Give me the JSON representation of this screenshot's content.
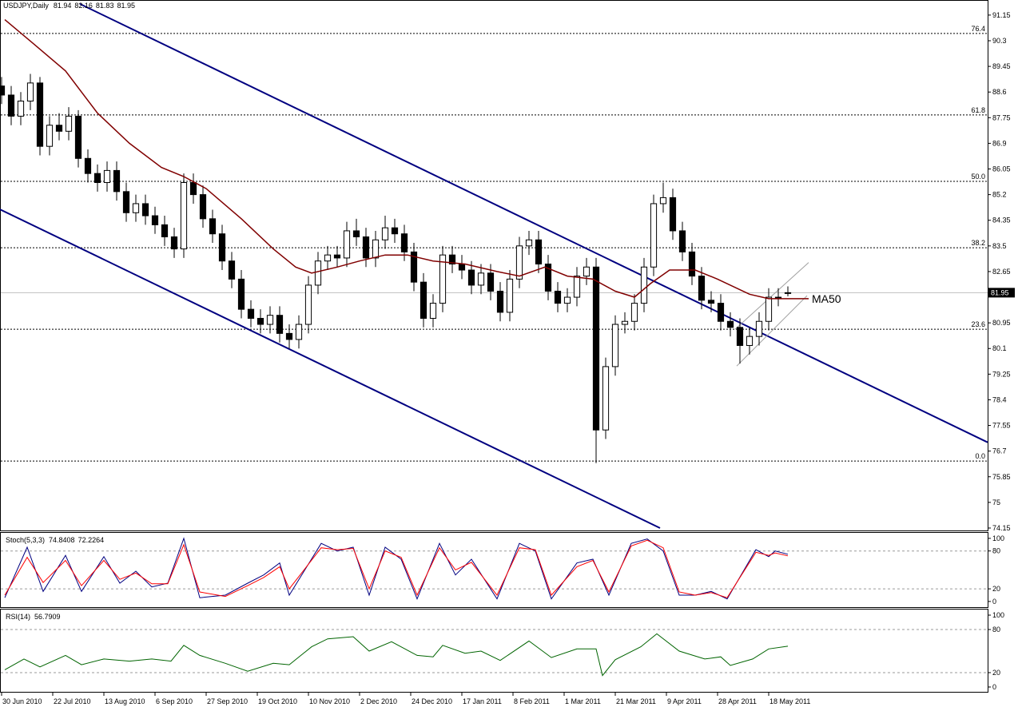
{
  "chart_data": [
    {
      "type": "candlestick",
      "title": "USDJPY,Daily",
      "x": [
        0,
        3,
        6,
        9,
        12,
        15,
        18,
        21,
        24,
        27,
        30,
        33,
        36,
        39,
        42,
        45,
        48,
        51,
        54,
        57,
        60,
        63,
        66,
        69,
        72,
        75,
        78,
        81,
        84,
        87,
        90,
        93,
        96,
        99,
        102,
        105,
        108,
        111,
        114,
        117,
        120,
        123,
        126,
        129,
        132,
        135,
        138,
        141,
        144,
        147,
        150,
        153,
        156,
        159,
        162,
        165,
        168,
        171,
        174,
        177,
        180,
        183,
        186,
        189,
        192,
        195,
        198,
        201,
        204,
        207,
        210,
        213,
        216,
        219,
        222,
        225,
        228,
        231,
        234,
        237,
        240,
        243,
        246
      ],
      "open": [
        88.8,
        88.5,
        87.8,
        88.3,
        88.9,
        86.8,
        87.5,
        87.3,
        87.8,
        86.4,
        85.9,
        85.6,
        86.0,
        85.3,
        84.6,
        84.9,
        84.5,
        84.2,
        83.8,
        83.4,
        85.6,
        85.2,
        84.4,
        83.9,
        83.0,
        82.4,
        81.4,
        81.1,
        80.9,
        81.2,
        80.6,
        80.4,
        80.9,
        82.2,
        83.0,
        83.2,
        83.1,
        84.0,
        83.8,
        83.1,
        83.7,
        84.1,
        83.9,
        83.3,
        82.3,
        81.1,
        81.6,
        83.2,
        82.9,
        82.7,
        82.2,
        82.6,
        82.0,
        81.3,
        82.4,
        83.5,
        83.7,
        82.9,
        82.0,
        81.6,
        81.8,
        82.5,
        82.8,
        77.4,
        79.5,
        80.9,
        81.0,
        81.6,
        82.8,
        84.9,
        85.1,
        84.0,
        83.3,
        82.5,
        81.7,
        81.6,
        81.0,
        80.8,
        80.2,
        80.5,
        81.0,
        81.8,
        81.94
      ],
      "high": [
        89.1,
        88.8,
        88.6,
        89.2,
        89.1,
        87.8,
        87.9,
        88.1,
        88.0,
        86.7,
        86.2,
        86.3,
        86.3,
        85.6,
        85.2,
        85.2,
        84.8,
        84.5,
        84.1,
        85.9,
        85.9,
        85.5,
        84.7,
        84.2,
        83.3,
        82.7,
        81.7,
        81.4,
        81.5,
        81.5,
        80.9,
        81.2,
        82.5,
        83.3,
        83.5,
        83.5,
        84.3,
        84.4,
        84.1,
        84.0,
        84.5,
        84.4,
        84.2,
        83.6,
        82.6,
        81.9,
        83.5,
        83.5,
        83.2,
        83.0,
        82.9,
        82.9,
        82.3,
        82.7,
        83.8,
        84.0,
        84.0,
        83.2,
        82.3,
        82.1,
        82.8,
        83.1,
        83.1,
        79.8,
        81.2,
        81.3,
        81.9,
        83.1,
        85.2,
        85.6,
        85.4,
        84.3,
        83.6,
        82.8,
        82.0,
        81.9,
        81.3,
        81.1,
        80.8,
        81.3,
        82.1,
        82.1,
        82.16
      ],
      "low": [
        88.2,
        87.5,
        87.5,
        88.0,
        86.5,
        86.5,
        87.0,
        87.0,
        86.1,
        85.6,
        85.3,
        85.3,
        85.0,
        84.3,
        84.3,
        84.2,
        83.9,
        83.5,
        83.1,
        83.1,
        84.9,
        84.1,
        83.6,
        82.7,
        82.1,
        81.1,
        80.8,
        80.6,
        80.6,
        80.3,
        80.1,
        80.1,
        80.6,
        81.9,
        82.7,
        82.8,
        82.8,
        83.5,
        82.8,
        82.8,
        83.4,
        83.6,
        83.0,
        82.0,
        80.8,
        80.8,
        81.3,
        82.6,
        82.4,
        81.9,
        81.9,
        81.7,
        81.0,
        81.0,
        82.1,
        83.2,
        82.6,
        81.7,
        81.3,
        81.3,
        81.5,
        82.2,
        76.3,
        77.1,
        79.2,
        80.6,
        80.7,
        81.3,
        82.5,
        84.6,
        83.7,
        83.0,
        82.2,
        81.4,
        81.3,
        80.7,
        80.5,
        79.6,
        79.9,
        80.2,
        80.7,
        81.5,
        81.83
      ],
      "close": [
        88.5,
        87.8,
        88.3,
        88.9,
        86.8,
        87.5,
        87.3,
        87.8,
        86.4,
        85.9,
        85.6,
        86.0,
        85.3,
        84.6,
        84.9,
        84.5,
        84.2,
        83.8,
        83.4,
        85.6,
        85.2,
        84.4,
        83.9,
        83.0,
        82.4,
        81.4,
        81.1,
        80.9,
        81.2,
        80.6,
        80.4,
        80.9,
        82.2,
        83.0,
        83.2,
        83.1,
        84.0,
        83.8,
        83.1,
        83.7,
        84.1,
        83.9,
        83.3,
        82.3,
        81.1,
        81.6,
        83.2,
        82.9,
        82.7,
        82.2,
        82.6,
        82.0,
        81.3,
        82.4,
        83.5,
        83.7,
        82.9,
        82.0,
        81.6,
        81.8,
        82.5,
        82.8,
        77.4,
        79.5,
        80.9,
        81.0,
        81.6,
        82.8,
        84.9,
        85.1,
        84.0,
        83.3,
        82.5,
        81.7,
        81.6,
        81.0,
        80.8,
        80.2,
        80.5,
        81.0,
        81.8,
        81.8,
        81.95
      ],
      "up_color": "#ffffff",
      "down_color": "#000000",
      "wick_color": "#000000",
      "ma": {
        "name": "MA50",
        "color": "#800000",
        "x": [
          1,
          10,
          20,
          30,
          40,
          50,
          57,
          64,
          75,
          85,
          92,
          97,
          105,
          112,
          120,
          127,
          135,
          145,
          155,
          162,
          170,
          177,
          185,
          192,
          198,
          203,
          209,
          217,
          224,
          234,
          240,
          246
        ],
        "values": [
          91.0,
          90.2,
          89.3,
          87.9,
          86.9,
          86.1,
          85.8,
          85.4,
          84.4,
          83.4,
          82.8,
          82.6,
          82.8,
          83.0,
          83.2,
          83.2,
          83.0,
          82.9,
          82.65,
          82.5,
          82.8,
          82.5,
          82.4,
          82.0,
          81.8,
          82.25,
          82.7,
          82.7,
          82.4,
          81.9,
          81.75,
          81.75
        ]
      },
      "trendlines": [
        {
          "color": "#000080",
          "x": [
            24.5,
            308.5
          ],
          "values": [
            91.52,
            76.99
          ]
        },
        {
          "color": "#000080",
          "x": [
            -0.5,
            206
          ],
          "values": [
            84.71,
            74.15
          ]
        },
        {
          "color": "#a0a0a0",
          "x": [
            230,
            252
          ],
          "values": [
            79.52,
            81.85
          ]
        },
        {
          "color": "#a0a0a0",
          "x": [
            229.5,
            252.5
          ],
          "values": [
            80.74,
            82.95
          ]
        }
      ],
      "levels": [
        {
          "name": "76.4",
          "value": 90.54
        },
        {
          "name": "61.8",
          "value": 87.84
        },
        {
          "name": "50.0",
          "value": 85.64
        },
        {
          "name": "38.2",
          "value": 83.44
        },
        {
          "name": "23.6",
          "value": 80.74
        },
        {
          "name": "0.0",
          "value": 76.37
        }
      ],
      "last_price": 81.95,
      "ylim": [
        74.07,
        91.65
      ],
      "yticks": [
        91.15,
        90.3,
        89.45,
        88.6,
        87.75,
        86.9,
        86.05,
        85.2,
        84.35,
        83.5,
        82.65,
        80.95,
        80.1,
        79.25,
        78.4,
        77.55,
        76.7,
        75.85,
        75.0,
        74.15
      ],
      "xlim": [
        -0.5,
        308.5
      ],
      "xticks": [
        {
          "value": 0,
          "label": "30 Jun 2010"
        },
        {
          "value": 16,
          "label": "22 Jul 2010"
        },
        {
          "value": 32,
          "label": "13 Aug 2010"
        },
        {
          "value": 48,
          "label": "6 Sep 2010"
        },
        {
          "value": 64,
          "label": "27 Sep 2010"
        },
        {
          "value": 80,
          "label": "19 Oct 2010"
        },
        {
          "value": 96,
          "label": "10 Nov 2010"
        },
        {
          "value": 112,
          "label": "2 Dec 2010"
        },
        {
          "value": 128,
          "label": "24 Dec 2010"
        },
        {
          "value": 144,
          "label": "17 Jan 2011"
        },
        {
          "value": 160,
          "label": "8 Feb 2011"
        },
        {
          "value": 176,
          "label": "1 Mar 2011"
        },
        {
          "value": 192,
          "label": "21 Mar 2011"
        },
        {
          "value": 208,
          "label": "9 Apr 2011"
        },
        {
          "value": 224,
          "label": "28 Apr 2011"
        },
        {
          "value": 240,
          "label": "18 May 2011"
        }
      ]
    },
    {
      "type": "line",
      "title": "Stoch(5,3,3)",
      "ylim": [
        -9,
        110
      ],
      "yticks": [
        100,
        80,
        20,
        0
      ],
      "x": [
        1,
        8,
        13,
        20,
        25,
        32,
        37,
        42,
        47,
        52,
        57,
        62,
        70,
        77,
        82,
        87,
        90,
        100,
        105,
        110,
        115,
        120,
        125,
        130,
        137,
        142,
        147,
        155,
        162,
        167,
        172,
        180,
        185,
        190,
        197,
        202,
        207,
        212,
        217,
        222,
        227,
        236,
        240,
        242,
        246
      ],
      "series": [
        {
          "color": "#000080",
          "values": [
            6,
            86,
            16,
            73,
            16,
            71,
            29,
            48,
            23,
            29,
            100,
            6,
            10,
            29,
            42,
            61,
            10,
            92,
            80,
            86,
            10,
            86,
            67,
            4,
            92,
            42,
            67,
            4,
            92,
            80,
            4,
            61,
            67,
            10,
            92,
            99,
            80,
            10,
            10,
            16,
            4,
            82,
            71,
            80,
            74.8408
          ]
        },
        {
          "color": "#ff0000",
          "values": [
            10,
            70,
            30,
            65,
            25,
            65,
            35,
            45,
            28,
            28,
            90,
            15,
            8,
            25,
            38,
            55,
            20,
            85,
            82,
            84,
            20,
            80,
            70,
            10,
            85,
            50,
            62,
            10,
            85,
            82,
            10,
            55,
            65,
            15,
            88,
            97,
            85,
            15,
            10,
            14,
            6,
            78,
            73,
            77,
            72.2264
          ]
        }
      ]
    },
    {
      "type": "line",
      "title": "RSI(14)",
      "ylim": [
        -6.7,
        108.9
      ],
      "yticks": [
        100,
        80,
        20,
        0
      ],
      "x": [
        1,
        7,
        12,
        20,
        25,
        32,
        40,
        47,
        53,
        57,
        62,
        70,
        77,
        85,
        90,
        97,
        102,
        110,
        115,
        122,
        130,
        135,
        138,
        145,
        150,
        156,
        165,
        172,
        180,
        186,
        188,
        192,
        200,
        205,
        212,
        220,
        225,
        228,
        235,
        240,
        246
      ],
      "series": [
        {
          "color": "#006400",
          "values": [
            24,
            39,
            28,
            44,
            31,
            39,
            36,
            39,
            36,
            58,
            44,
            33,
            22,
            33,
            31,
            56,
            67,
            70,
            50,
            63,
            44,
            42,
            58,
            47,
            50,
            37,
            64,
            41,
            53,
            53,
            16,
            38,
            56,
            74,
            50,
            39,
            42,
            30,
            39,
            53,
            56.7909
          ]
        }
      ]
    }
  ]
}
